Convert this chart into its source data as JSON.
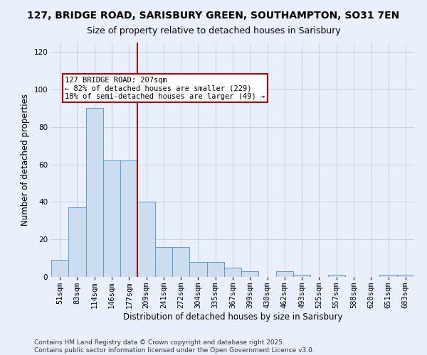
{
  "title_line1": "127, BRIDGE ROAD, SARISBURY GREEN, SOUTHAMPTON, SO31 7EN",
  "title_line2": "Size of property relative to detached houses in Sarisbury",
  "xlabel": "Distribution of detached houses by size in Sarisbury",
  "ylabel": "Number of detached properties",
  "bins": [
    "51sqm",
    "83sqm",
    "114sqm",
    "146sqm",
    "177sqm",
    "209sqm",
    "241sqm",
    "272sqm",
    "304sqm",
    "335sqm",
    "367sqm",
    "399sqm",
    "430sqm",
    "462sqm",
    "493sqm",
    "525sqm",
    "557sqm",
    "588sqm",
    "620sqm",
    "651sqm",
    "683sqm"
  ],
  "values": [
    9,
    37,
    90,
    62,
    62,
    40,
    16,
    16,
    8,
    8,
    5,
    3,
    0,
    3,
    1,
    0,
    1,
    0,
    0,
    1,
    1
  ],
  "bar_color": "#ccddf0",
  "bar_edge_color": "#5b9bd5",
  "vline_bin_index": 5,
  "vline_color": "#c00000",
  "annotation_text": "127 BRIDGE ROAD: 207sqm\n← 82% of detached houses are smaller (229)\n18% of semi-detached houses are larger (49) →",
  "annotation_box_color": "#c00000",
  "ylim": [
    0,
    125
  ],
  "yticks": [
    0,
    20,
    40,
    60,
    80,
    100,
    120
  ],
  "background_color": "#eaf0fb",
  "footnote": "Contains HM Land Registry data © Crown copyright and database right 2025.\nContains public sector information licensed under the Open Government Licence v3.0.",
  "title_fontsize": 10,
  "subtitle_fontsize": 9,
  "label_fontsize": 8.5,
  "tick_fontsize": 7.5,
  "footnote_fontsize": 6.5,
  "annot_fontsize": 7.5
}
